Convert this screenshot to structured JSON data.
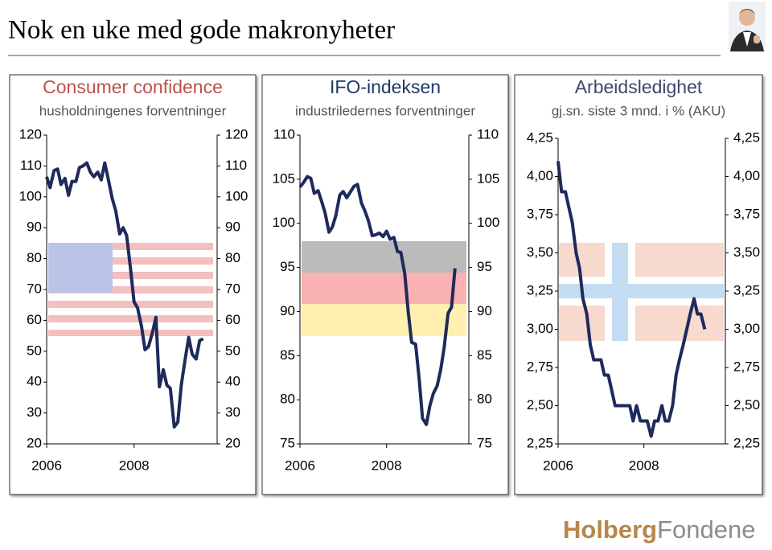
{
  "header": {
    "title": "Nok en uke med gode makronyheter"
  },
  "footer": {
    "logo": [
      "Holberg",
      "Fondene"
    ]
  },
  "chart_data": [
    {
      "type": "line",
      "title": "Consumer confidence",
      "subtitle": "husholdningenes forventninger",
      "title_color": "#c0504d",
      "color": "#1f2a5c",
      "x": [
        2006,
        2006.08,
        2006.17,
        2006.25,
        2006.33,
        2006.42,
        2006.5,
        2006.58,
        2006.67,
        2006.75,
        2006.83,
        2006.92,
        2007,
        2007.08,
        2007.17,
        2007.25,
        2007.33,
        2007.42,
        2007.5,
        2007.58,
        2007.67,
        2007.75,
        2007.83,
        2007.92,
        2008,
        2008.08,
        2008.17,
        2008.25,
        2008.33,
        2008.42,
        2008.5,
        2008.58,
        2008.67,
        2008.75,
        2008.83,
        2008.92,
        2009,
        2009.08,
        2009.17,
        2009.25,
        2009.33,
        2009.42,
        2009.5,
        2009.58
      ],
      "values": [
        106.5,
        103,
        108.5,
        109,
        104,
        106,
        100.5,
        105,
        105,
        109.5,
        110,
        111,
        108,
        106.5,
        108,
        105.5,
        111,
        105,
        99.5,
        95.5,
        88,
        90,
        87.5,
        76.5,
        66,
        64,
        58,
        50.5,
        51.5,
        56,
        61,
        38.5,
        44,
        39,
        38,
        25.5,
        27,
        39,
        47.5,
        54.5,
        49,
        47.5,
        53.5,
        54
      ],
      "xlim": [
        2006,
        2009.9
      ],
      "xticks": [
        2006,
        2008
      ],
      "ylim": [
        20,
        120
      ],
      "yticks": [
        20,
        30,
        40,
        50,
        60,
        70,
        80,
        90,
        100,
        110,
        120
      ],
      "y2lim": [
        20,
        120
      ],
      "y2ticks": [
        20,
        30,
        40,
        50,
        60,
        70,
        80,
        90,
        100,
        110,
        120
      ]
    },
    {
      "type": "line",
      "title": "IFO-indeksen",
      "subtitle": "industriledernes forventninger",
      "title_color": "#1f3864",
      "color": "#1f2a5c",
      "x": [
        2006,
        2006.08,
        2006.17,
        2006.25,
        2006.33,
        2006.42,
        2006.5,
        2006.58,
        2006.67,
        2006.75,
        2006.83,
        2006.92,
        2007,
        2007.08,
        2007.17,
        2007.25,
        2007.33,
        2007.42,
        2007.5,
        2007.58,
        2007.67,
        2007.75,
        2007.83,
        2007.92,
        2008,
        2008.08,
        2008.17,
        2008.25,
        2008.33,
        2008.42,
        2008.5,
        2008.58,
        2008.67,
        2008.75,
        2008.83,
        2008.92,
        2009,
        2009.08,
        2009.17,
        2009.25,
        2009.33,
        2009.42,
        2009.5,
        2009.58
      ],
      "values": [
        104.1,
        104.6,
        105.3,
        105.1,
        103.4,
        103.7,
        102.5,
        101.2,
        99.0,
        99.6,
        100.9,
        103.2,
        103.6,
        102.9,
        103.6,
        104.2,
        104.4,
        102.3,
        101.4,
        100.3,
        98.6,
        98.7,
        98.9,
        98.5,
        99.1,
        98.2,
        98.4,
        96.8,
        96.7,
        94.3,
        90.0,
        86.5,
        86.3,
        82.5,
        77.9,
        77.2,
        79.3,
        80.7,
        81.6,
        83.4,
        85.9,
        89.8,
        90.5,
        94.9
      ],
      "xlim": [
        2006,
        2009.9
      ],
      "xticks": [
        2006,
        2008
      ],
      "ylim": [
        75,
        110
      ],
      "yticks": [
        75,
        80,
        85,
        90,
        95,
        100,
        105,
        110
      ],
      "y2lim": [
        75,
        110
      ],
      "y2ticks": [
        75,
        80,
        85,
        90,
        95,
        100,
        105,
        110
      ]
    },
    {
      "type": "line",
      "title": "Arbeidsledighet",
      "subtitle": "gj.sn. siste 3 mnd. i % (AKU)",
      "title_color": "#3a4a6b",
      "color": "#1f2a5c",
      "x": [
        2006,
        2006.08,
        2006.17,
        2006.25,
        2006.33,
        2006.42,
        2006.5,
        2006.58,
        2006.67,
        2006.75,
        2006.83,
        2006.92,
        2007,
        2007.08,
        2007.17,
        2007.25,
        2007.33,
        2007.42,
        2007.5,
        2007.58,
        2007.67,
        2007.75,
        2007.83,
        2007.92,
        2008,
        2008.08,
        2008.17,
        2008.25,
        2008.33,
        2008.42,
        2008.5,
        2008.58,
        2008.67,
        2008.75,
        2008.83,
        2008.92,
        2009,
        2009.08,
        2009.17,
        2009.25,
        2009.33,
        2009.42
      ],
      "values": [
        4.1,
        3.9,
        3.9,
        3.8,
        3.7,
        3.5,
        3.4,
        3.2,
        3.1,
        2.9,
        2.8,
        2.8,
        2.8,
        2.7,
        2.7,
        2.6,
        2.5,
        2.5,
        2.5,
        2.5,
        2.5,
        2.4,
        2.5,
        2.4,
        2.4,
        2.4,
        2.3,
        2.4,
        2.4,
        2.5,
        2.4,
        2.4,
        2.5,
        2.7,
        2.8,
        2.9,
        3.0,
        3.1,
        3.2,
        3.1,
        3.1,
        3.0
      ],
      "xlim": [
        2006,
        2009.9
      ],
      "xticks": [
        2006,
        2008
      ],
      "ylim": [
        2.25,
        4.25
      ],
      "yticks": [
        {
          "value": 2.25,
          "label": "2,25"
        },
        {
          "value": 2.5,
          "label": "2,50"
        },
        {
          "value": 2.75,
          "label": "2,75"
        },
        {
          "value": 3,
          "label": "3,00"
        },
        {
          "value": 3.25,
          "label": "3,25"
        },
        {
          "value": 3.5,
          "label": "3,50"
        },
        {
          "value": 3.75,
          "label": "3,75"
        },
        {
          "value": 4,
          "label": "4,00"
        },
        {
          "value": 4.25,
          "label": "4,25"
        }
      ],
      "y2lim": [
        2.25,
        4.25
      ],
      "y2ticks": [
        {
          "value": 2.25,
          "label": "2,25"
        },
        {
          "value": 2.5,
          "label": "2,50"
        },
        {
          "value": 2.75,
          "label": "2,75"
        },
        {
          "value": 3,
          "label": "3,00"
        },
        {
          "value": 3.25,
          "label": "3,25"
        },
        {
          "value": 3.5,
          "label": "3,50"
        },
        {
          "value": 3.75,
          "label": "3,75"
        },
        {
          "value": 4,
          "label": "4,00"
        },
        {
          "value": 4.25,
          "label": "4,25"
        }
      ]
    }
  ]
}
